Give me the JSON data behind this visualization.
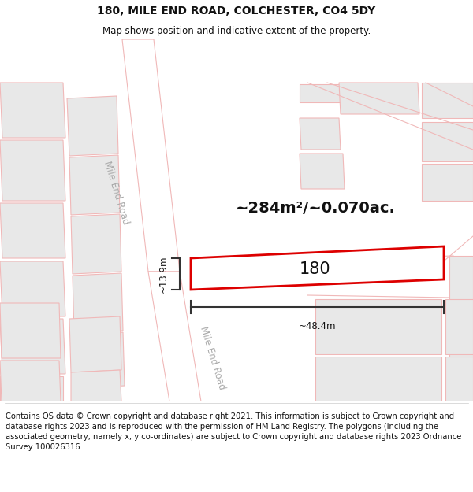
{
  "title": "180, MILE END ROAD, COLCHESTER, CO4 5DY",
  "subtitle": "Map shows position and indicative extent of the property.",
  "footer": "Contains OS data © Crown copyright and database right 2021. This information is subject to Crown copyright and database rights 2023 and is reproduced with the permission of HM Land Registry. The polygons (including the associated geometry, namely x, y co-ordinates) are subject to Crown copyright and database rights 2023 Ordnance Survey 100026316.",
  "area_text": "~284m²/~0.070ac.",
  "plot_label": "180",
  "dim_width": "~48.4m",
  "dim_height": "~13.9m",
  "map_bg": "#ffffff",
  "road_line_color": "#f0b8b8",
  "plot_fill": "#ffffff",
  "plot_outline": "#dd0000",
  "block_fill": "#e8e8e8",
  "block_outline": "#f0b8b8",
  "text_color": "#111111",
  "road_label_color": "#aaaaaa",
  "dim_line_color": "#333333",
  "title_fontsize": 10,
  "subtitle_fontsize": 8.5,
  "footer_fontsize": 7.2,
  "area_fontsize": 14,
  "plot_label_fontsize": 15,
  "dim_fontsize": 8.5,
  "road_label_fontsize": 8.5
}
